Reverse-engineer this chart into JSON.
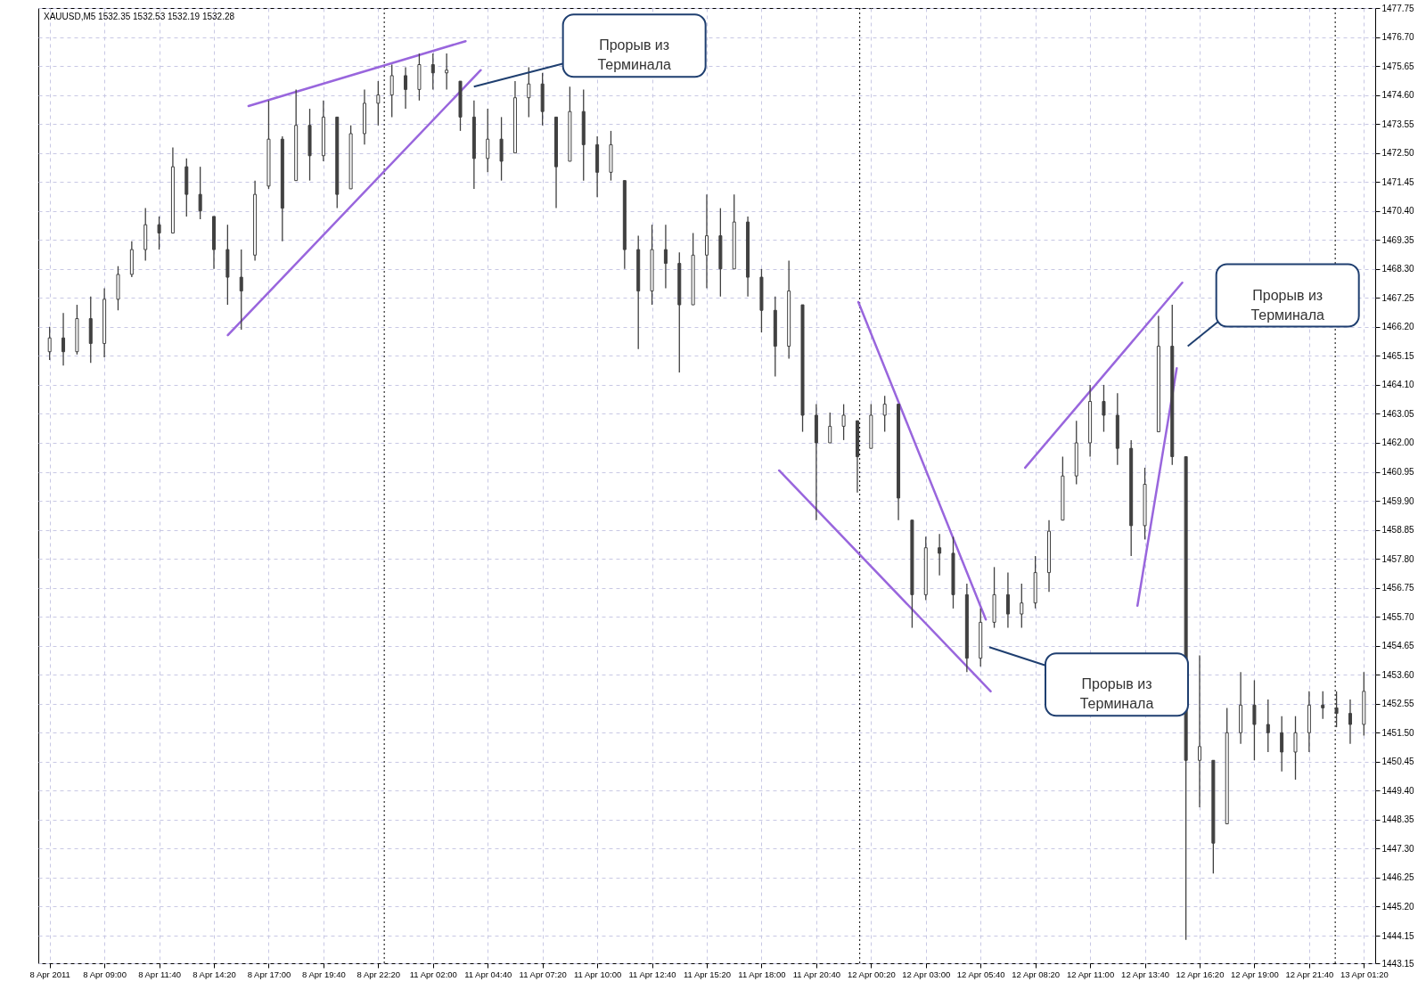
{
  "chart_data": {
    "type": "candlestick",
    "title": "XAUUSD,M5  1532.35 1532.53 1532.19 1532.28",
    "color": "#404040",
    "categories": [
      "8 Apr 2011",
      null,
      null,
      null,
      "8 Apr 09:00",
      null,
      null,
      null,
      "8 Apr 11:40",
      null,
      null,
      null,
      "8 Apr 14:20",
      null,
      null,
      null,
      "8 Apr 17:00",
      null,
      null,
      null,
      "8 Apr 19:40",
      null,
      null,
      null,
      "8 Apr 22:20",
      null,
      null,
      null,
      "11 Apr 02:00",
      null,
      null,
      null,
      "11 Apr 04:40",
      null,
      null,
      null,
      "11 Apr 07:20",
      null,
      null,
      null,
      "11 Apr 10:00",
      null,
      null,
      null,
      "11 Apr 12:40",
      null,
      null,
      null,
      "11 Apr 15:20",
      null,
      null,
      null,
      "11 Apr 18:00",
      null,
      null,
      null,
      "11 Apr 20:40",
      null,
      null,
      null,
      "12 Apr 00:20",
      null,
      null,
      null,
      "12 Apr 03:00",
      null,
      null,
      null,
      "12 Apr 05:40",
      null,
      null,
      null,
      "12 Apr 08:20",
      null,
      null,
      null,
      "12 Apr 11:00",
      null,
      null,
      null,
      "12 Apr 13:40",
      null,
      null,
      null,
      "12 Apr 16:20",
      null,
      null,
      null,
      "12 Apr 19:00",
      null,
      null,
      null,
      "12 Apr 21:40",
      null,
      null,
      null,
      "13 Apr 01:20"
    ],
    "ohlc": [
      [
        1465.3,
        1466.2,
        1465.0,
        1465.8
      ],
      [
        1465.8,
        1466.7,
        1464.8,
        1465.3
      ],
      [
        1465.3,
        1467.0,
        1465.2,
        1466.5
      ],
      [
        1466.5,
        1467.3,
        1464.9,
        1465.6
      ],
      [
        1465.6,
        1467.6,
        1465.1,
        1467.2
      ],
      [
        1467.2,
        1468.4,
        1466.8,
        1468.1
      ],
      [
        1468.1,
        1469.3,
        1468.0,
        1469.0
      ],
      [
        1469.0,
        1470.5,
        1468.6,
        1469.9
      ],
      [
        1469.9,
        1470.2,
        1469.0,
        1469.6
      ],
      [
        1469.6,
        1472.7,
        1469.6,
        1472.0
      ],
      [
        1472.0,
        1472.3,
        1470.2,
        1471.0
      ],
      [
        1471.0,
        1472.0,
        1470.1,
        1470.4
      ],
      [
        1470.2,
        1470.2,
        1468.3,
        1469.0
      ],
      [
        1469.0,
        1469.9,
        1467.0,
        1468.0
      ],
      [
        1468.0,
        1469.0,
        1466.1,
        1467.5
      ],
      [
        1468.8,
        1471.5,
        1468.6,
        1471.0
      ],
      [
        1471.3,
        1474.4,
        1471.2,
        1473.0
      ],
      [
        1473.0,
        1473.1,
        1469.3,
        1470.5
      ],
      [
        1471.5,
        1474.8,
        1471.5,
        1473.5
      ],
      [
        1473.5,
        1474.1,
        1471.5,
        1472.4
      ],
      [
        1472.4,
        1474.4,
        1472.2,
        1473.8
      ],
      [
        1473.8,
        1473.8,
        1470.5,
        1471.0
      ],
      [
        1471.2,
        1473.5,
        1471.2,
        1473.2
      ],
      [
        1473.2,
        1474.8,
        1472.8,
        1474.3
      ],
      [
        1474.3,
        1475.1,
        1473.5,
        1474.6
      ],
      [
        1474.6,
        1475.7,
        1473.8,
        1475.3
      ],
      [
        1475.3,
        1475.6,
        1474.1,
        1474.8
      ],
      [
        1474.8,
        1476.1,
        1474.4,
        1475.7
      ],
      [
        1475.7,
        1476.1,
        1474.8,
        1475.4
      ],
      [
        1475.4,
        1476.1,
        1474.8,
        1475.5
      ],
      [
        1475.1,
        1475.1,
        1473.3,
        1473.8
      ],
      [
        1473.8,
        1474.4,
        1471.2,
        1472.3
      ],
      [
        1472.3,
        1474.1,
        1471.8,
        1473.0
      ],
      [
        1473.0,
        1473.8,
        1471.5,
        1472.2
      ],
      [
        1472.5,
        1475.1,
        1472.5,
        1474.5
      ],
      [
        1474.5,
        1475.6,
        1473.8,
        1475.0
      ],
      [
        1475.0,
        1475.4,
        1473.5,
        1474.0
      ],
      [
        1473.8,
        1473.8,
        1470.5,
        1472.0
      ],
      [
        1472.2,
        1474.9,
        1472.2,
        1474.0
      ],
      [
        1474.0,
        1474.8,
        1471.5,
        1472.8
      ],
      [
        1472.8,
        1473.1,
        1470.9,
        1471.8
      ],
      [
        1471.8,
        1473.3,
        1471.5,
        1472.8
      ],
      [
        1471.5,
        1471.5,
        1468.3,
        1469.0
      ],
      [
        1469.0,
        1469.5,
        1465.4,
        1467.5
      ],
      [
        1467.5,
        1469.9,
        1467.0,
        1469.0
      ],
      [
        1469.0,
        1469.9,
        1467.6,
        1468.5
      ],
      [
        1468.5,
        1468.9,
        1464.55,
        1467.0
      ],
      [
        1467.0,
        1469.6,
        1467.0,
        1468.8
      ],
      [
        1468.8,
        1471.0,
        1467.6,
        1469.5
      ],
      [
        1469.5,
        1470.5,
        1467.3,
        1468.3
      ],
      [
        1468.3,
        1471.0,
        1468.3,
        1470.0
      ],
      [
        1470.0,
        1470.2,
        1467.3,
        1468.0
      ],
      [
        1468.0,
        1468.3,
        1466.0,
        1466.8
      ],
      [
        1466.8,
        1467.3,
        1464.4,
        1465.5
      ],
      [
        1465.5,
        1468.6,
        1465.05,
        1467.5
      ],
      [
        1467.0,
        1467.0,
        1462.4,
        1463.0
      ],
      [
        1463.0,
        1463.4,
        1459.2,
        1462.0
      ],
      [
        1462.0,
        1463.1,
        1462.0,
        1462.6
      ],
      [
        1462.6,
        1463.4,
        1462.1,
        1463.0
      ],
      [
        1462.8,
        1462.8,
        1460.2,
        1461.5
      ],
      [
        1461.8,
        1463.4,
        1461.8,
        1463.0
      ],
      [
        1463.0,
        1463.7,
        1462.4,
        1463.4
      ],
      [
        1463.4,
        1463.4,
        1459.2,
        1460.0
      ],
      [
        1459.2,
        1459.2,
        1455.3,
        1456.5
      ],
      [
        1456.5,
        1458.6,
        1456.3,
        1458.2
      ],
      [
        1458.2,
        1458.7,
        1457.2,
        1458.0
      ],
      [
        1458.0,
        1458.6,
        1456.0,
        1456.5
      ],
      [
        1456.5,
        1456.9,
        1453.7,
        1454.2
      ],
      [
        1454.2,
        1456.0,
        1453.9,
        1455.5
      ],
      [
        1455.5,
        1457.5,
        1455.3,
        1456.5
      ],
      [
        1456.5,
        1457.3,
        1455.3,
        1455.8
      ],
      [
        1455.8,
        1456.9,
        1455.3,
        1456.2
      ],
      [
        1456.2,
        1457.9,
        1456.0,
        1457.3
      ],
      [
        1457.3,
        1459.2,
        1456.6,
        1458.8
      ],
      [
        1459.2,
        1461.5,
        1459.2,
        1460.8
      ],
      [
        1460.8,
        1462.8,
        1460.5,
        1462.0
      ],
      [
        1462.0,
        1464.1,
        1461.5,
        1463.5
      ],
      [
        1463.5,
        1464.1,
        1462.4,
        1463.0
      ],
      [
        1463.0,
        1463.8,
        1461.2,
        1461.8
      ],
      [
        1461.8,
        1462.1,
        1457.9,
        1459.0
      ],
      [
        1459.0,
        1461.1,
        1458.5,
        1460.5
      ],
      [
        1462.4,
        1466.6,
        1462.4,
        1465.5
      ],
      [
        1465.5,
        1467.0,
        1461.2,
        1461.5
      ],
      [
        1461.5,
        1461.5,
        1444.0,
        1450.5
      ],
      [
        1450.5,
        1454.3,
        1448.8,
        1451.0
      ],
      [
        1450.5,
        1450.5,
        1446.4,
        1447.5
      ],
      [
        1448.2,
        1452.4,
        1448.2,
        1451.5
      ],
      [
        1451.5,
        1453.7,
        1451.1,
        1452.5
      ],
      [
        1452.5,
        1453.4,
        1450.5,
        1451.8
      ],
      [
        1451.8,
        1452.7,
        1450.8,
        1451.5
      ],
      [
        1451.5,
        1452.1,
        1450.1,
        1450.8
      ],
      [
        1450.8,
        1452.1,
        1449.8,
        1451.5
      ],
      [
        1451.5,
        1453.0,
        1450.8,
        1452.5
      ],
      [
        1452.5,
        1453.0,
        1452.0,
        1452.4
      ],
      [
        1452.4,
        1453.0,
        1451.7,
        1452.2
      ],
      [
        1452.2,
        1452.7,
        1451.1,
        1451.8
      ],
      [
        1451.8,
        1453.7,
        1451.4,
        1453.0
      ]
    ],
    "annotations": [
      "Прорыв из\nТерминала",
      "Прорыв из\nТерминала",
      "Прорыв из\nТерминала"
    ],
    "ylim": [
      1443.15,
      1477.75
    ],
    "yticks": [
      1477.75,
      {
        "value": 1476.7,
        "label": "1476.70"
      },
      1475.65,
      {
        "value": 1474.6,
        "label": "1474.60"
      },
      1473.55,
      {
        "value": 1472.5,
        "label": "1472.50"
      },
      1471.45,
      {
        "value": 1470.4,
        "label": "1470.40"
      },
      1469.35,
      {
        "value": 1468.3,
        "label": "1468.30"
      },
      1467.25,
      {
        "value": 1466.2,
        "label": "1466.20"
      },
      1465.15,
      {
        "value": 1464.1,
        "label": "1464.10"
      },
      1463.05,
      {
        "value": 1462,
        "label": "1462.00"
      },
      1460.95,
      {
        "value": 1459.9,
        "label": "1459.90"
      },
      1458.85,
      {
        "value": 1457.8,
        "label": "1457.80"
      },
      1456.75,
      {
        "value": 1455.7,
        "label": "1455.70"
      },
      1454.65,
      {
        "value": 1453.6,
        "label": "1453.60"
      },
      1452.55,
      {
        "value": 1451.5,
        "label": "1451.50"
      },
      1450.45,
      {
        "value": 1449.4,
        "label": "1449.40"
      },
      1448.35,
      {
        "value": 1447.3,
        "label": "1447.30"
      },
      1446.25,
      {
        "value": 1445.2,
        "label": "1445.20"
      },
      1444.15,
      1443.15
    ],
    "grid": true
  }
}
